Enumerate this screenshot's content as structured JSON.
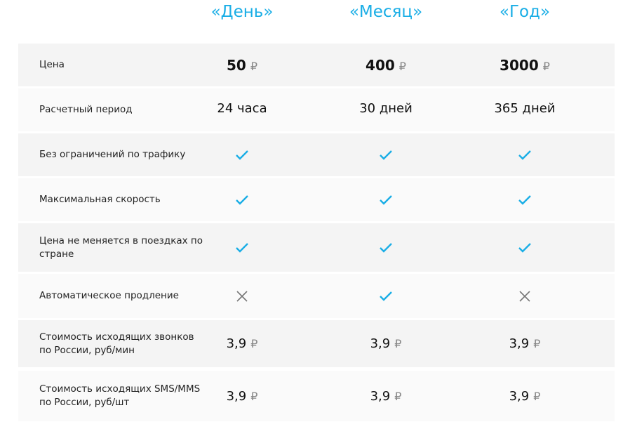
{
  "plans": [
    "«День»",
    "«Месяц»",
    "«Год»"
  ],
  "currency": "₽",
  "accent_color": "#1aaee6",
  "rows": [
    {
      "label": "Цена",
      "type": "price",
      "values": [
        "50",
        "400",
        "3000"
      ]
    },
    {
      "label": "Расчетный период",
      "type": "text",
      "values": [
        "24 часа",
        "30 дней",
        "365 дней"
      ]
    },
    {
      "label": "Без ограничений по трафику",
      "type": "icon",
      "values": [
        "check-icon",
        "check-icon",
        "check-icon"
      ]
    },
    {
      "label": "Максимальная скорость",
      "type": "icon",
      "values": [
        "check-icon",
        "check-icon",
        "check-icon"
      ]
    },
    {
      "label": "Цена не меняется в поездках по стране",
      "type": "icon",
      "values": [
        "check-icon",
        "check-icon",
        "check-icon"
      ]
    },
    {
      "label": "Автоматическое продление",
      "type": "icon",
      "values": [
        "cross-icon",
        "check-icon",
        "cross-icon"
      ]
    },
    {
      "label": "Стоимость исходящих звонков по России, руб/мин",
      "type": "cost",
      "values": [
        "3,9",
        "3,9",
        "3,9"
      ]
    },
    {
      "label": "Стоимость исходящих SMS/MMS по России, руб/шт",
      "type": "cost",
      "values": [
        "3,9",
        "3,9",
        "3,9"
      ]
    }
  ]
}
